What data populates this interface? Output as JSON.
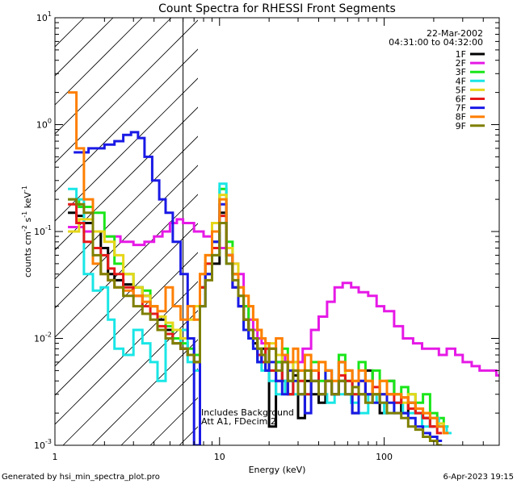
{
  "chart_data": {
    "type": "line",
    "title": "Count Spectra for RHESSI Front Segments",
    "date_label": "22-Mar-2002",
    "time_range": "04:31:00 to 04:32:00",
    "xlabel": "Energy (keV)",
    "ylabel": {
      "base": "counts cm",
      "exp1": "-2",
      "mid": " s",
      "exp2": "-1",
      "unit": " keV",
      "exp3": "-1"
    },
    "xscale": "log",
    "yscale": "log",
    "xlim": [
      1,
      500
    ],
    "ylim": [
      0.001,
      10
    ],
    "x_ticks": [
      {
        "value": 1,
        "label": "1"
      },
      {
        "value": 10,
        "label": "10"
      },
      {
        "value": 100,
        "label": "100"
      }
    ],
    "y_ticks": [
      {
        "value": 0.001,
        "base": "10",
        "exp": "-3"
      },
      {
        "value": 0.01,
        "base": "10",
        "exp": "-2"
      },
      {
        "value": 0.1,
        "base": "10",
        "exp": "-1"
      },
      {
        "value": 1,
        "base": "10",
        "exp": "0"
      },
      {
        "value": 10,
        "base": "10",
        "exp": "1"
      }
    ],
    "hatched_region_x": [
      1,
      6
    ],
    "annotations": [
      "Includes Background",
      "Att A1, FDecim 2"
    ],
    "series": [
      {
        "name": "1F",
        "color": "#000000",
        "x": [
          1.2,
          1.35,
          1.5,
          1.7,
          1.9,
          2.1,
          2.3,
          2.6,
          3,
          3.4,
          3.8,
          4.2,
          4.7,
          5.2,
          5.8,
          6.4,
          7,
          7.6,
          8.2,
          9,
          10,
          11,
          12,
          13,
          14,
          15,
          16,
          17,
          18,
          19,
          20,
          22,
          24,
          26,
          28,
          30,
          33,
          36,
          40,
          44,
          48,
          53,
          58,
          64,
          70,
          77,
          85,
          94,
          104,
          115,
          127,
          140,
          155,
          172,
          190
        ],
        "values": [
          0.15,
          0.14,
          0.12,
          0.1,
          0.07,
          0.04,
          0.035,
          0.032,
          0.03,
          0.025,
          0.02,
          0.015,
          0.012,
          0.01,
          0.008,
          0.007,
          0.006,
          0.03,
          0.04,
          0.05,
          0.15,
          0.06,
          0.04,
          0.02,
          0.015,
          0.01,
          0.009,
          0.006,
          0.008,
          0.005,
          0.0015,
          0.006,
          0.004,
          0.003,
          0.0045,
          0.0018,
          0.004,
          0.003,
          0.0025,
          0.004,
          0.003,
          0.006,
          0.005,
          0.002,
          0.003,
          0.005,
          0.003,
          0.002,
          0.004,
          0.003,
          0.002,
          0.0025,
          0.002,
          0.0018,
          0.0015
        ]
      },
      {
        "name": "2F",
        "color": "#e619e6",
        "x": [
          1.2,
          1.5,
          2,
          2.5,
          3,
          3.5,
          4,
          4.5,
          5,
          5.5,
          6,
          7,
          8,
          9,
          10,
          11,
          12,
          13,
          14,
          15,
          16,
          17,
          18,
          20,
          22,
          25,
          28,
          32,
          36,
          40,
          45,
          50,
          56,
          63,
          70,
          80,
          90,
          100,
          115,
          130,
          150,
          170,
          190,
          215,
          240,
          270,
          300,
          340,
          380,
          430,
          480
        ],
        "values": [
          0.11,
          0.1,
          0.09,
          0.08,
          0.075,
          0.08,
          0.09,
          0.1,
          0.12,
          0.13,
          0.12,
          0.1,
          0.09,
          0.08,
          0.07,
          0.06,
          0.05,
          0.04,
          0.02,
          0.015,
          0.012,
          0.01,
          0.009,
          0.008,
          0.007,
          0.006,
          0.006,
          0.008,
          0.012,
          0.016,
          0.022,
          0.03,
          0.033,
          0.03,
          0.027,
          0.025,
          0.02,
          0.018,
          0.013,
          0.01,
          0.009,
          0.008,
          0.008,
          0.007,
          0.008,
          0.007,
          0.006,
          0.0055,
          0.005,
          0.005,
          0.0045
        ]
      },
      {
        "name": "3F",
        "color": "#19e619",
        "x": [
          1.2,
          1.4,
          1.7,
          2,
          2.3,
          2.6,
          3,
          3.4,
          3.8,
          4.2,
          4.7,
          5.2,
          5.8,
          6.4,
          7,
          7.6,
          8.2,
          9,
          10,
          11,
          12,
          13,
          14,
          15,
          16,
          17,
          18,
          19,
          20,
          22,
          24,
          26,
          28,
          30,
          33,
          36,
          40,
          44,
          48,
          53,
          58,
          64,
          70,
          77,
          85,
          94,
          104,
          115,
          127,
          140,
          155,
          172,
          190,
          210,
          230
        ],
        "values": [
          0.2,
          0.17,
          0.15,
          0.09,
          0.05,
          0.04,
          0.03,
          0.028,
          0.02,
          0.016,
          0.013,
          0.01,
          0.009,
          0.008,
          0.007,
          0.03,
          0.05,
          0.08,
          0.25,
          0.08,
          0.04,
          0.025,
          0.02,
          0.012,
          0.01,
          0.008,
          0.006,
          0.009,
          0.005,
          0.006,
          0.008,
          0.004,
          0.006,
          0.005,
          0.003,
          0.006,
          0.004,
          0.005,
          0.003,
          0.007,
          0.004,
          0.003,
          0.006,
          0.004,
          0.005,
          0.003,
          0.004,
          0.003,
          0.0035,
          0.003,
          0.0025,
          0.003,
          0.002,
          0.0018,
          0.0015
        ]
      },
      {
        "name": "4F",
        "color": "#19e6e6",
        "x": [
          1.2,
          1.35,
          1.5,
          1.7,
          1.9,
          2.1,
          2.3,
          2.6,
          3,
          3.4,
          3.8,
          4.2,
          4.7,
          5.2,
          5.8,
          6.4,
          7,
          7.6,
          8.2,
          9,
          10,
          11,
          12,
          13,
          14,
          15,
          16,
          17,
          18,
          20,
          22,
          25,
          28,
          32,
          36,
          40,
          45,
          50,
          56,
          63,
          70,
          80,
          90,
          100,
          115,
          130,
          150,
          170,
          190,
          215,
          240
        ],
        "values": [
          0.25,
          0.2,
          0.04,
          0.028,
          0.03,
          0.015,
          0.008,
          0.007,
          0.012,
          0.009,
          0.006,
          0.004,
          0.01,
          0.009,
          0.012,
          0.006,
          0.005,
          0.02,
          0.04,
          0.06,
          0.28,
          0.05,
          0.03,
          0.02,
          0.012,
          0.01,
          0.008,
          0.006,
          0.005,
          0.004,
          0.003,
          0.004,
          0.003,
          0.003,
          0.004,
          0.003,
          0.0025,
          0.003,
          0.003,
          0.0025,
          0.002,
          0.003,
          0.0025,
          0.002,
          0.0025,
          0.002,
          0.002,
          0.0015,
          0.0018,
          0.0015,
          0.0013
        ]
      },
      {
        "name": "5F",
        "color": "#e6d619",
        "x": [
          1.2,
          1.4,
          1.7,
          2,
          2.3,
          2.6,
          3,
          3.4,
          3.8,
          4.2,
          4.7,
          5.2,
          5.8,
          6.4,
          7,
          7.6,
          8.2,
          9,
          10,
          11,
          12,
          13,
          14,
          15,
          16,
          17,
          18,
          19,
          20,
          22,
          24,
          26,
          28,
          30,
          33,
          36,
          40,
          44,
          48,
          53,
          58,
          64,
          70,
          77,
          85,
          94,
          104,
          115,
          127,
          140,
          155,
          172,
          190,
          210,
          230
        ],
        "values": [
          0.1,
          0.13,
          0.1,
          0.08,
          0.06,
          0.04,
          0.03,
          0.025,
          0.02,
          0.016,
          0.014,
          0.012,
          0.01,
          0.015,
          0.02,
          0.04,
          0.06,
          0.12,
          0.22,
          0.07,
          0.05,
          0.03,
          0.025,
          0.02,
          0.015,
          0.012,
          0.01,
          0.008,
          0.009,
          0.007,
          0.006,
          0.005,
          0.006,
          0.004,
          0.005,
          0.004,
          0.006,
          0.005,
          0.004,
          0.004,
          0.005,
          0.004,
          0.003,
          0.004,
          0.003,
          0.004,
          0.003,
          0.003,
          0.0025,
          0.003,
          0.0022,
          0.002,
          0.0018,
          0.0016,
          0.0013
        ]
      },
      {
        "name": "6F",
        "color": "#e61919",
        "x": [
          1.2,
          1.35,
          1.5,
          1.7,
          1.9,
          2.1,
          2.3,
          2.6,
          3,
          3.4,
          3.8,
          4.2,
          4.7,
          5.2,
          5.8,
          6.4,
          7,
          7.6,
          8.2,
          9,
          10,
          11,
          12,
          13,
          14,
          15,
          16,
          17,
          18,
          19,
          20,
          22,
          24,
          26,
          28,
          30,
          33,
          36,
          40,
          44,
          48,
          53,
          58,
          64,
          70,
          77,
          85,
          94,
          104,
          115,
          127,
          140,
          155,
          172,
          190,
          210
        ],
        "values": [
          0.18,
          0.12,
          0.08,
          0.07,
          0.06,
          0.045,
          0.04,
          0.03,
          0.025,
          0.02,
          0.017,
          0.013,
          0.011,
          0.009,
          0.008,
          0.007,
          0.006,
          0.03,
          0.05,
          0.07,
          0.14,
          0.06,
          0.03,
          0.02,
          0.015,
          0.012,
          0.01,
          0.007,
          0.006,
          0.008,
          0.005,
          0.004,
          0.006,
          0.003,
          0.005,
          0.004,
          0.003,
          0.005,
          0.003,
          0.004,
          0.003,
          0.0045,
          0.004,
          0.003,
          0.004,
          0.003,
          0.0035,
          0.003,
          0.003,
          0.0025,
          0.0028,
          0.0022,
          0.002,
          0.0018,
          0.0015,
          0.0013
        ]
      },
      {
        "name": "7F",
        "color": "#1919e6",
        "x": [
          1.3,
          1.6,
          2,
          2.3,
          2.6,
          2.9,
          3.2,
          3.5,
          3.9,
          4.3,
          4.7,
          5.2,
          5.8,
          6.4,
          7,
          7.6,
          8.2,
          9,
          10,
          11,
          12,
          13,
          14,
          15,
          16,
          17,
          18,
          19,
          20,
          22,
          24,
          26,
          28,
          30,
          33,
          36,
          40,
          44,
          48,
          53,
          58,
          64,
          70,
          77,
          85,
          94,
          104,
          115,
          127,
          140,
          155,
          172,
          190,
          210
        ],
        "values": [
          0.55,
          0.6,
          0.65,
          0.7,
          0.8,
          0.85,
          0.75,
          0.5,
          0.3,
          0.2,
          0.15,
          0.08,
          0.04,
          0.01,
          0.001,
          0.02,
          0.04,
          0.08,
          0.18,
          0.06,
          0.03,
          0.02,
          0.012,
          0.01,
          0.008,
          0.006,
          0.007,
          0.005,
          0.006,
          0.004,
          0.003,
          0.005,
          0.004,
          0.003,
          0.002,
          0.004,
          0.003,
          0.005,
          0.003,
          0.004,
          0.003,
          0.002,
          0.004,
          0.003,
          0.0025,
          0.003,
          0.0025,
          0.002,
          0.002,
          0.0018,
          0.0015,
          0.0013,
          0.0012,
          0.0011
        ]
      },
      {
        "name": "8F",
        "color": "#ff7f00",
        "x": [
          1.2,
          1.35,
          1.5,
          1.7,
          1.9,
          2.1,
          2.3,
          2.6,
          3,
          3.4,
          3.8,
          4.2,
          4.7,
          5.2,
          5.8,
          6.4,
          7,
          7.6,
          8.2,
          9,
          10,
          11,
          12,
          13,
          14,
          15,
          16,
          17,
          18,
          19,
          20,
          22,
          24,
          26,
          28,
          30,
          33,
          36,
          40,
          44,
          48,
          53,
          58,
          64,
          70,
          77,
          85,
          94,
          104,
          115,
          127,
          140,
          155,
          172,
          190,
          210,
          230
        ],
        "values": [
          2,
          0.6,
          0.2,
          0.05,
          0.04,
          0.035,
          0.03,
          0.028,
          0.025,
          0.022,
          0.02,
          0.018,
          0.03,
          0.02,
          0.015,
          0.02,
          0.015,
          0.04,
          0.06,
          0.1,
          0.2,
          0.06,
          0.04,
          0.03,
          0.025,
          0.02,
          0.015,
          0.012,
          0.01,
          0.009,
          0.008,
          0.01,
          0.007,
          0.006,
          0.008,
          0.005,
          0.007,
          0.005,
          0.006,
          0.005,
          0.004,
          0.006,
          0.005,
          0.004,
          0.005,
          0.004,
          0.003,
          0.004,
          0.003,
          0.003,
          0.0028,
          0.0025,
          0.0022,
          0.002,
          0.0018,
          0.0015,
          0.0013
        ]
      },
      {
        "name": "9F",
        "color": "#7f7f00",
        "x": [
          1.2,
          1.35,
          1.5,
          1.7,
          1.9,
          2.1,
          2.3,
          2.6,
          3,
          3.4,
          3.8,
          4.2,
          4.7,
          5.2,
          5.8,
          6.4,
          7,
          7.6,
          8.2,
          9,
          10,
          11,
          12,
          13,
          14,
          15,
          16,
          17,
          18,
          19,
          20,
          22,
          24,
          26,
          28,
          30,
          33,
          36,
          40,
          44,
          48,
          53,
          58,
          64,
          70,
          77,
          85,
          94,
          104,
          115,
          127,
          140,
          155,
          172,
          190,
          210
        ],
        "values": [
          0.2,
          0.18,
          0.15,
          0.06,
          0.04,
          0.035,
          0.03,
          0.025,
          0.02,
          0.017,
          0.015,
          0.012,
          0.01,
          0.009,
          0.008,
          0.007,
          0.006,
          0.02,
          0.035,
          0.06,
          0.12,
          0.05,
          0.035,
          0.025,
          0.015,
          0.012,
          0.01,
          0.008,
          0.007,
          0.006,
          0.008,
          0.005,
          0.006,
          0.004,
          0.005,
          0.003,
          0.005,
          0.004,
          0.003,
          0.004,
          0.003,
          0.004,
          0.003,
          0.0035,
          0.003,
          0.0025,
          0.003,
          0.0025,
          0.002,
          0.002,
          0.0018,
          0.0015,
          0.0014,
          0.0012,
          0.0011,
          0.001
        ]
      }
    ]
  },
  "footer": {
    "generator": "Generated by hsi_min_spectra_plot.pro",
    "timestamp": "6-Apr-2023 19:15"
  }
}
